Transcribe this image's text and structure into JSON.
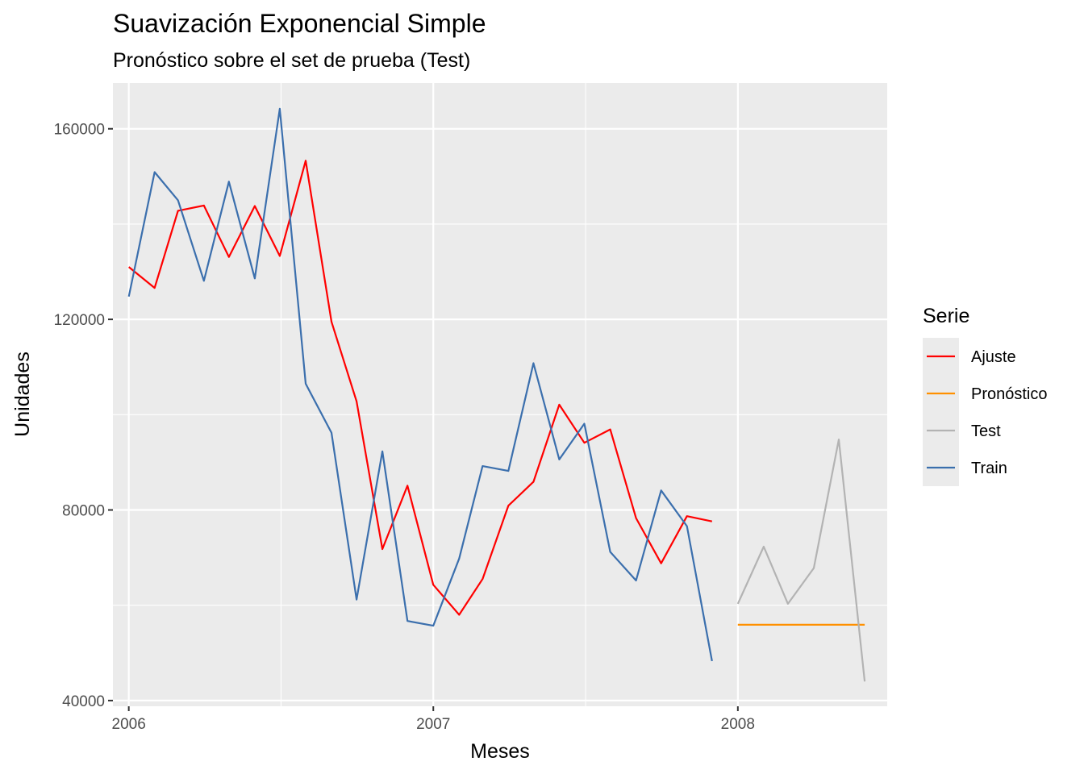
{
  "chart_data": {
    "type": "line",
    "title": "Suavización Exponencial Simple",
    "subtitle": "Pronóstico sobre el set de prueba (Test)",
    "xlabel": "Meses",
    "ylabel": "Unidades",
    "xlim": [
      "2005-12-13",
      "2008-06-28"
    ],
    "ylim": [
      38800,
      169600
    ],
    "x_ticks": [
      {
        "value": "2006-01-01",
        "label": "2006"
      },
      {
        "value": "2007-01-01",
        "label": "2007"
      },
      {
        "value": "2008-01-01",
        "label": "2008"
      }
    ],
    "y_ticks": [
      {
        "value": 40000,
        "label": "40000"
      },
      {
        "value": 80000,
        "label": "80000"
      },
      {
        "value": 120000,
        "label": "120000"
      },
      {
        "value": 160000,
        "label": "160000"
      }
    ],
    "grid": true,
    "legend": {
      "title": "Serie",
      "position": "right"
    },
    "series": [
      {
        "name": "Ajuste",
        "color": "#FF0000",
        "x": [
          "2006-01-01",
          "2006-02-01",
          "2006-03-01",
          "2006-04-01",
          "2006-05-01",
          "2006-06-01",
          "2006-07-01",
          "2006-08-01",
          "2006-09-01",
          "2006-10-01",
          "2006-11-01",
          "2006-12-01",
          "2007-01-01",
          "2007-02-01",
          "2007-03-01",
          "2007-04-01",
          "2007-05-01",
          "2007-06-01",
          "2007-07-01",
          "2007-08-01",
          "2007-09-01",
          "2007-10-01",
          "2007-11-01",
          "2007-12-01"
        ],
        "y": [
          131000,
          126600,
          142800,
          143900,
          133100,
          143800,
          133300,
          153300,
          119500,
          102800,
          71800,
          85100,
          64300,
          58000,
          65500,
          80900,
          85900,
          102100,
          94100,
          96900,
          78300,
          68800,
          78700,
          77600
        ]
      },
      {
        "name": "Pronóstico",
        "color": "#FF9000",
        "x": [
          "2008-01-01",
          "2008-02-01",
          "2008-03-01",
          "2008-04-01",
          "2008-05-01",
          "2008-06-01"
        ],
        "y": [
          55900,
          55900,
          55900,
          55900,
          55900,
          55900
        ]
      },
      {
        "name": "Test",
        "color": "#B3B3B3",
        "x": [
          "2008-01-01",
          "2008-02-01",
          "2008-03-01",
          "2008-04-01",
          "2008-05-01",
          "2008-06-01"
        ],
        "y": [
          60300,
          72300,
          60300,
          67800,
          94800,
          44000
        ]
      },
      {
        "name": "Train",
        "color": "#3B6FAD",
        "x": [
          "2006-01-01",
          "2006-02-01",
          "2006-03-01",
          "2006-04-01",
          "2006-05-01",
          "2006-06-01",
          "2006-07-01",
          "2006-08-01",
          "2006-09-01",
          "2006-10-01",
          "2006-11-01",
          "2006-12-01",
          "2007-01-01",
          "2007-02-01",
          "2007-03-01",
          "2007-04-01",
          "2007-05-01",
          "2007-06-01",
          "2007-07-01",
          "2007-08-01",
          "2007-09-01",
          "2007-10-01",
          "2007-11-01",
          "2007-12-01"
        ],
        "y": [
          124800,
          150900,
          145000,
          128100,
          148900,
          128600,
          164200,
          106500,
          96200,
          61200,
          92300,
          56700,
          55700,
          69800,
          89200,
          88200,
          110800,
          90600,
          98100,
          71200,
          65200,
          84100,
          76600,
          48300
        ]
      }
    ]
  }
}
